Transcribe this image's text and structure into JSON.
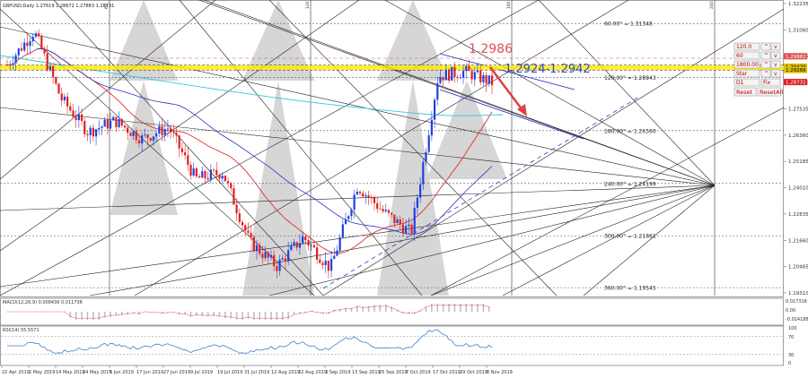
{
  "window": {
    "symbol_title": "GBPUSD,Daily 1.27619 1.28672 1.27883 1.28731"
  },
  "indicators": {
    "macd_label": "MACD(12,26,9) 0.008436 0.011736",
    "macd_scale": [
      "0.017318",
      "0.00",
      "-0.014188"
    ],
    "rsi_label": "RSI(14) 55.5571",
    "rsi_scale": [
      "100",
      "70",
      "30",
      "0"
    ]
  },
  "annotations": {
    "resistance_high": "1.2986",
    "resistance_zone": "1.2924-1.2942"
  },
  "gann_levels": [
    {
      "label": "60.00° = 1.31348",
      "price": 1.31348
    },
    {
      "label": "120.00° = 1.28943",
      "price": 1.28943
    },
    {
      "label": "180.00° = 1.26560",
      "price": 1.2656
    },
    {
      "label": "240.00° = 1.24199",
      "price": 1.24199
    },
    {
      "label": "300.00° = 1.21861",
      "price": 1.21861
    },
    {
      "label": "360.00° = 1.19545",
      "price": 1.19545
    }
  ],
  "vertical_markers": [
    "60",
    "120",
    "180",
    "240"
  ],
  "panel": {
    "fields": [
      "120.0",
      "60",
      "1800.00",
      "Star",
      "D1"
    ],
    "buttons": [
      "^",
      "v",
      "^",
      "v",
      "^",
      "v",
      "^",
      "v",
      "Fix",
      "Reset",
      "ResetAll"
    ]
  },
  "price_tags": [
    "1.29882",
    "1.29420",
    "1.29266",
    "1.28731"
  ],
  "chart_data": {
    "type": "candlestick",
    "title": "",
    "x_ticks": [
      "22 Apr 2019",
      "2 May 2019",
      "14 May 2019",
      "24 May 2019",
      "5 Jun 2019",
      "17 Jun 2019",
      "27 Jun 2019",
      "9 Jul 2019",
      "19 Jul 2019",
      "31 Jul 2019",
      "12 Aug 2019",
      "22 Aug 2019",
      "3 Sep 2019",
      "13 Sep 2019",
      "25 Sep 2019",
      "7 Oct 2019",
      "17 Oct 2019",
      "29 Oct 2019",
      "8 Nov 2019"
    ],
    "y_ticks": [
      1.32235,
      1.3106,
      1.29885,
      1.2871,
      1.27535,
      1.2636,
      1.25185,
      1.2401,
      1.22835,
      1.2166,
      1.20485,
      1.1931
    ],
    "ylim": [
      1.1931,
      1.32235
    ],
    "close_path": [
      {
        "x": "22 Apr 2019",
        "y": 1.295
      },
      {
        "x": "2 May 2019",
        "y": 1.31
      },
      {
        "x": "14 May 2019",
        "y": 1.28
      },
      {
        "x": "24 May 2019",
        "y": 1.265
      },
      {
        "x": "5 Jun 2019",
        "y": 1.27
      },
      {
        "x": "17 Jun 2019",
        "y": 1.262
      },
      {
        "x": "27 Jun 2019",
        "y": 1.267
      },
      {
        "x": "9 Jul 2019",
        "y": 1.244
      },
      {
        "x": "19 Jul 2019",
        "y": 1.247
      },
      {
        "x": "31 Jul 2019",
        "y": 1.216
      },
      {
        "x": "12 Aug 2019",
        "y": 1.205
      },
      {
        "x": "22 Aug 2019",
        "y": 1.218
      },
      {
        "x": "3 Sep 2019",
        "y": 1.204
      },
      {
        "x": "13 Sep 2019",
        "y": 1.241
      },
      {
        "x": "25 Sep 2019",
        "y": 1.229
      },
      {
        "x": "7 Oct 2019",
        "y": 1.22
      },
      {
        "x": "17 Oct 2019",
        "y": 1.29
      },
      {
        "x": "29 Oct 2019",
        "y": 1.292
      },
      {
        "x": "8 Nov 2019",
        "y": 1.287
      }
    ]
  }
}
